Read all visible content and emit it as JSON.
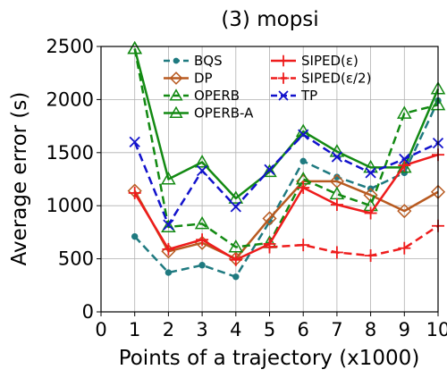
{
  "chart_data": {
    "type": "line",
    "title": "(3) mopsi",
    "xlabel": "Points of a trajectory (x1000)",
    "ylabel": "Average error (s)",
    "xlim": [
      0,
      10
    ],
    "ylim": [
      0,
      2500
    ],
    "xticks": [
      "0",
      "1",
      "2",
      "3",
      "4",
      "5",
      "6",
      "7",
      "8",
      "9",
      "10"
    ],
    "yticks": [
      "0",
      "500",
      "1000",
      "1500",
      "2000",
      "2500"
    ],
    "grid": true,
    "legend_position": "top",
    "x": [
      1,
      2,
      3,
      4,
      5,
      6,
      7,
      8,
      9,
      10
    ],
    "series": [
      {
        "name": "BQS",
        "color": "#1f7a80",
        "dash": "dashed",
        "marker": "dot",
        "values": [
          710,
          370,
          440,
          330,
          850,
          1420,
          1270,
          1160,
          1310,
          1990
        ]
      },
      {
        "name": "DP",
        "color": "#b85a20",
        "dash": "solid",
        "marker": "diamond",
        "values": [
          1140,
          570,
          650,
          500,
          880,
          1230,
          1230,
          1100,
          950,
          1130
        ]
      },
      {
        "name": "OPERB",
        "color": "#138a13",
        "dash": "dashed",
        "marker": "triangle",
        "values": [
          2480,
          800,
          830,
          610,
          650,
          1250,
          1110,
          1000,
          1870,
          1950
        ]
      },
      {
        "name": "OPERB-A",
        "color": "#138a13",
        "dash": "solid",
        "marker": "triangle",
        "values": [
          2480,
          1250,
          1410,
          1070,
          1320,
          1700,
          1510,
          1360,
          1360,
          2100
        ]
      },
      {
        "name": "SIPED(ε)",
        "color": "#ee1c1c",
        "dash": "solid",
        "marker": "plus",
        "values": [
          1120,
          590,
          680,
          490,
          640,
          1170,
          1010,
          930,
          1380,
          1480
        ]
      },
      {
        "name": "SIPED(ε/2)",
        "color": "#ee1c1c",
        "dash": "dashed",
        "marker": "plus",
        "values": [
          null,
          null,
          null,
          null,
          610,
          630,
          560,
          530,
          600,
          810
        ]
      },
      {
        "name": "TP",
        "color": "#1212cc",
        "dash": "dashed",
        "marker": "x",
        "values": [
          1600,
          820,
          1330,
          990,
          1340,
          1670,
          1460,
          1310,
          1440,
          1590
        ]
      }
    ]
  }
}
